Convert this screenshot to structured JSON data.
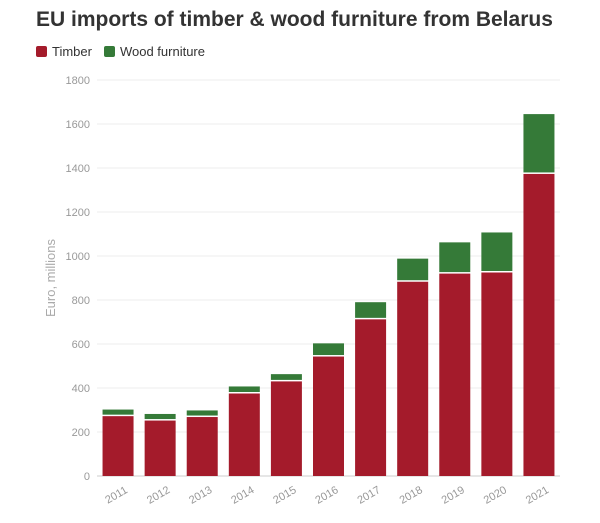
{
  "colors": {
    "timber": "#a41b2b",
    "wood_furniture": "#357a38"
  },
  "chart_data": {
    "type": "bar",
    "stacked": true,
    "title": "EU imports of timber & wood furniture from Belarus",
    "xlabel": "",
    "ylabel": "Euro, millions",
    "ylim": [
      0,
      1800
    ],
    "yticks": [
      0,
      200,
      400,
      600,
      800,
      1000,
      1200,
      1400,
      1600,
      1800
    ],
    "grid": true,
    "legend_position": "top-left",
    "categories": [
      "2011",
      "2012",
      "2013",
      "2014",
      "2015",
      "2016",
      "2017",
      "2018",
      "2019",
      "2020",
      "2021"
    ],
    "series": [
      {
        "name": "Timber",
        "color": "#a41b2b",
        "values": [
          272,
          252,
          268,
          375,
          430,
          543,
          712,
          883,
          920,
          925,
          1373
        ]
      },
      {
        "name": "Wood furniture",
        "color": "#357a38",
        "values": [
          30,
          30,
          30,
          32,
          33,
          60,
          78,
          105,
          142,
          182,
          272
        ]
      }
    ]
  }
}
